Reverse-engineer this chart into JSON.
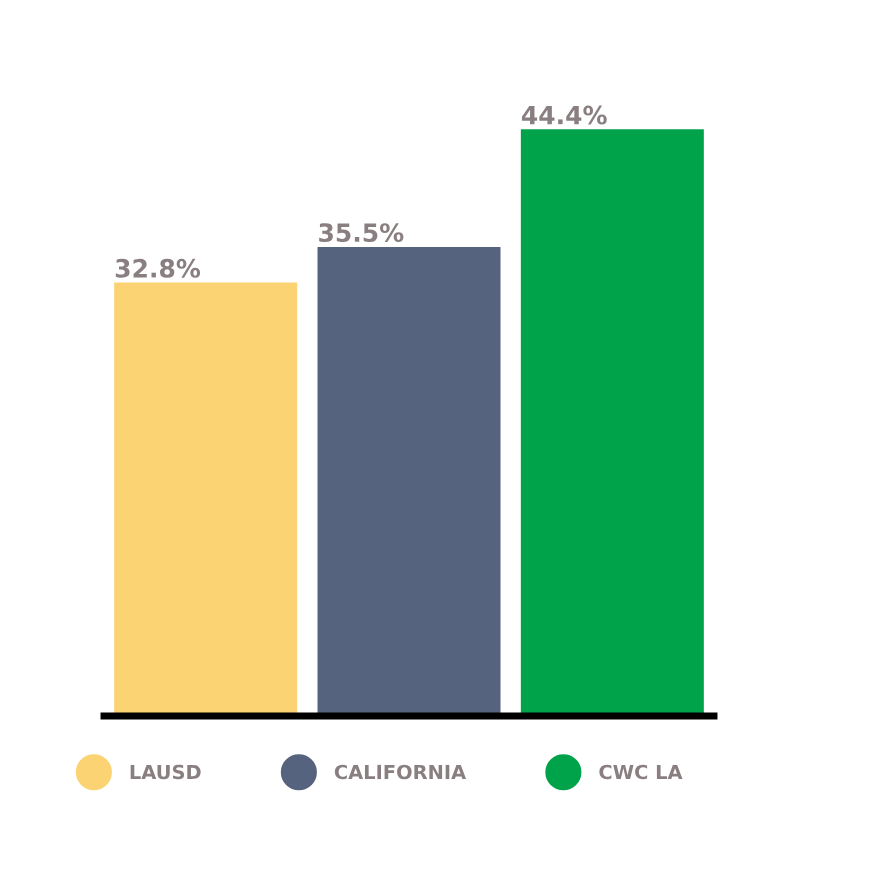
{
  "chart_data": {
    "type": "bar",
    "categories": [
      null,
      null,
      null
    ],
    "stacked": true,
    "legend": "bottom",
    "grid": false,
    "series": [
      {
        "name": "LAUSD",
        "color": "#fcd373",
        "values": [
          32.8,
          null,
          null
        ],
        "value_labels": [
          "32.8%",
          null,
          null
        ]
      },
      {
        "name": "CALIFORNIA",
        "color": "#56637e",
        "values": [
          null,
          35.5,
          null
        ],
        "value_labels": [
          null,
          "35.5%",
          null
        ]
      },
      {
        "name": "CWC LA",
        "color": "#00a34a",
        "values": [
          null,
          null,
          44.4
        ],
        "value_labels": [
          null,
          null,
          "44.4%"
        ]
      }
    ]
  }
}
